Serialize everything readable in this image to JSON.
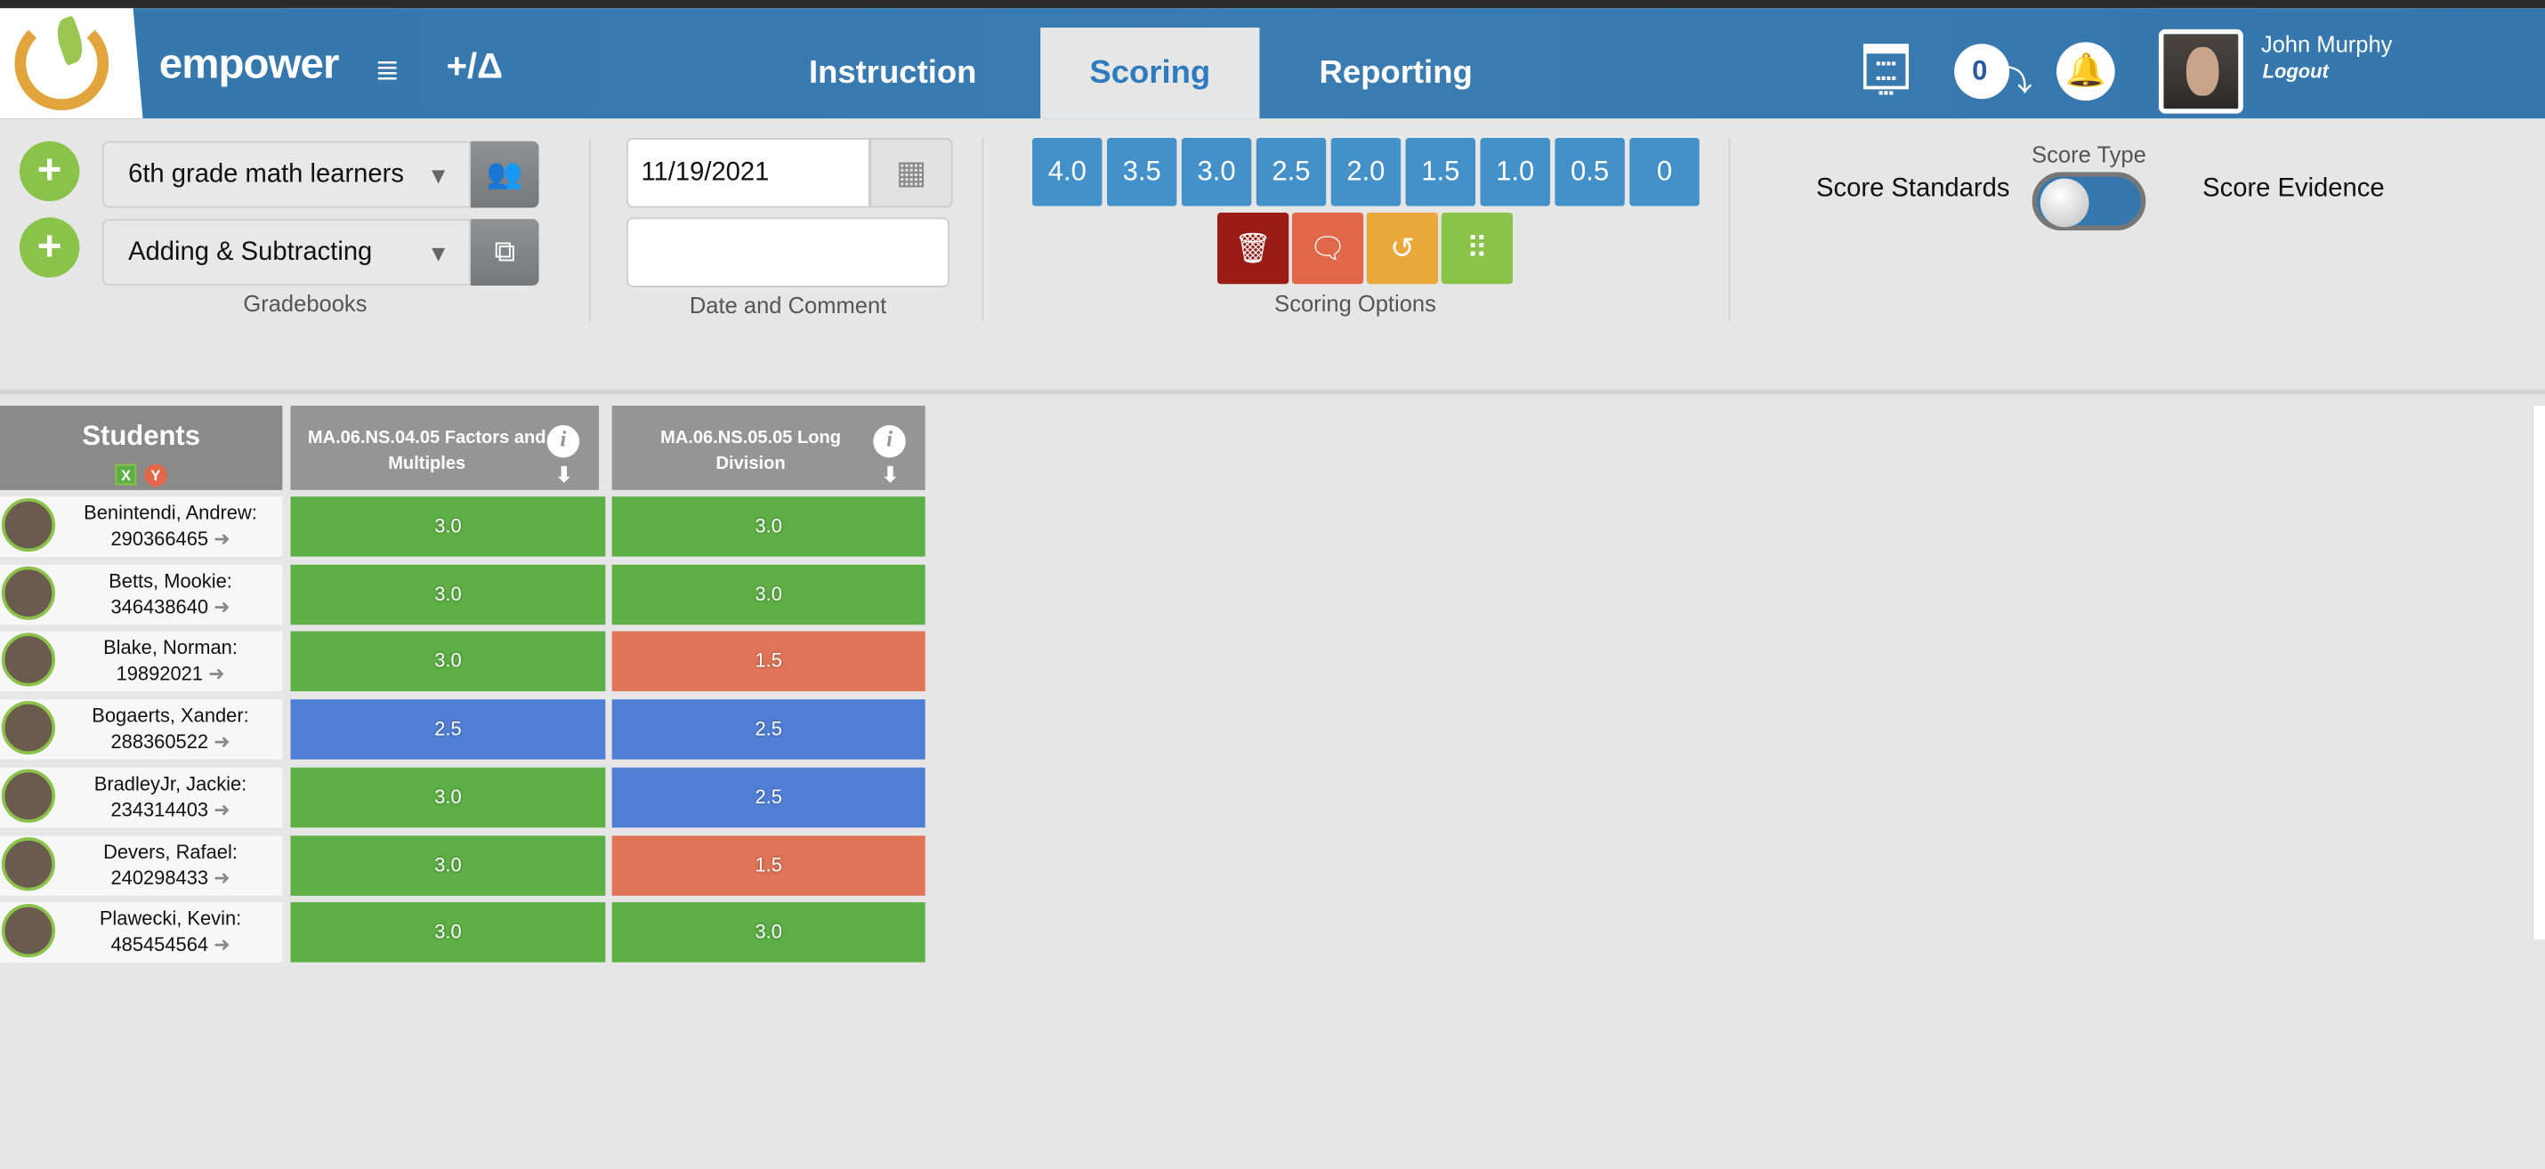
{
  "header": {
    "brand": "empower",
    "tabs": [
      {
        "label": "Instruction",
        "active": false
      },
      {
        "label": "Scoring",
        "active": true
      },
      {
        "label": "Reporting",
        "active": false
      }
    ],
    "badge_count": "0",
    "user_name": "John Murphy",
    "logout_label": "Logout",
    "color": "#3576ab"
  },
  "gradebooks": {
    "group_select": "6th grade math learners",
    "gradebook_select": "Adding & Subtracting",
    "label": "Gradebooks"
  },
  "date_comment": {
    "date": "11/19/2021",
    "comment": "",
    "label": "Date and Comment"
  },
  "scoring": {
    "scores": [
      "4.0",
      "3.5",
      "3.0",
      "2.5",
      "2.0",
      "1.5",
      "1.0",
      "0.5",
      "0"
    ],
    "options": [
      {
        "name": "delete",
        "color": "#9b1c14"
      },
      {
        "name": "comment",
        "color": "#e0674a"
      },
      {
        "name": "history",
        "color": "#e9a83a"
      },
      {
        "name": "keypad",
        "color": "#8bc34a"
      }
    ],
    "label": "Scoring Options"
  },
  "score_type": {
    "label": "Score Type",
    "left": "Score Standards",
    "right": "Score Evidence",
    "state": "Score Standards"
  },
  "table": {
    "students_header": "Students",
    "columns": [
      "MA.06.NS.04.05 Factors and Multiples",
      "MA.06.NS.05.05 Long Division"
    ],
    "rows": [
      {
        "name": "Benintendi, Andrew:",
        "id": "290366465",
        "scores": [
          "3.0",
          "3.0"
        ]
      },
      {
        "name": "Betts, Mookie:",
        "id": "346438640",
        "scores": [
          "3.0",
          "3.0"
        ]
      },
      {
        "name": "Blake, Norman:",
        "id": "19892021",
        "scores": [
          "3.0",
          "1.5"
        ]
      },
      {
        "name": "Bogaerts, Xander:",
        "id": "288360522",
        "scores": [
          "2.5",
          "2.5"
        ]
      },
      {
        "name": "BradleyJr, Jackie:",
        "id": "234314403",
        "scores": [
          "3.0",
          "2.5"
        ]
      },
      {
        "name": "Devers, Rafael:",
        "id": "240298433",
        "scores": [
          "3.0",
          "1.5"
        ]
      },
      {
        "name": "Plawecki, Kevin:",
        "id": "485454564",
        "scores": [
          "3.0",
          "3.0"
        ]
      }
    ],
    "score_colors": {
      "3.0": "#5daf46",
      "2.5": "#527fd6",
      "1.5": "#e07458"
    }
  }
}
